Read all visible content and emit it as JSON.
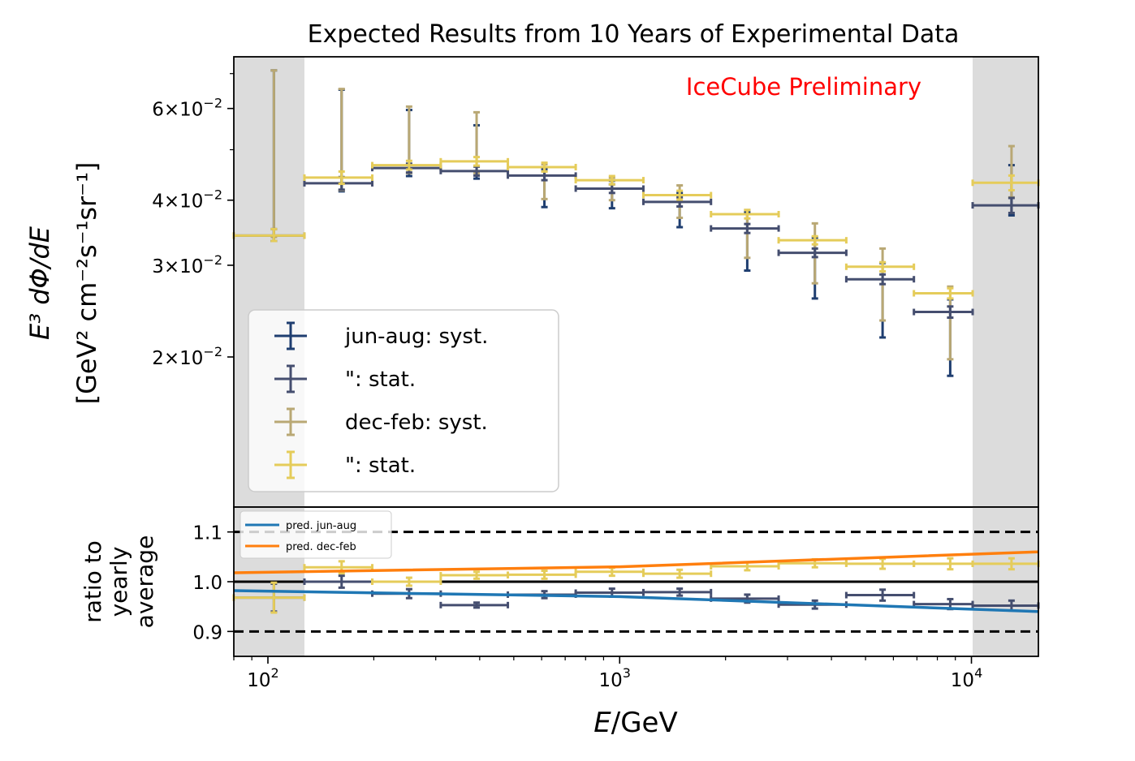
{
  "title": "Expected Results from 10 Years of Experimental Data",
  "watermark": "IceCube Preliminary",
  "colors": {
    "jun_syst": "#1f3e70",
    "jun_stat": "#454e6f",
    "dec_syst": "#b9a874",
    "dec_stat": "#e5cc5a",
    "pred_jun": "#1f77b4",
    "pred_dec": "#ff7f0e",
    "shade": "#dcdcdc",
    "watermark": "#ff0000"
  },
  "chart_data": [
    {
      "type": "scatter",
      "panel": "top",
      "xscale": "log",
      "yscale": "log",
      "xlim": [
        80,
        15500
      ],
      "ylim": [
        0.0103,
        0.0754
      ],
      "ylabel_line1": "E³ dΦ/dE",
      "ylabel_line2": "[GeV² cm⁻²s⁻¹sr⁻¹]",
      "yticks": [
        {
          "value": 0.02,
          "mant": "2",
          "exp": "−2"
        },
        {
          "value": 0.03,
          "mant": "3",
          "exp": "−2"
        },
        {
          "value": 0.04,
          "mant": "4",
          "exp": "−2"
        },
        {
          "value": 0.06,
          "mant": "6",
          "exp": "−2"
        }
      ],
      "shaded_x_ranges": [
        [
          80,
          127
        ],
        [
          10080,
          15500
        ]
      ],
      "legend": {
        "placement": "lower-left",
        "entries": [
          {
            "label": "jun-aug: syst.",
            "color_key": "jun_syst"
          },
          {
            "label": "\": stat.",
            "color_key": "jun_stat"
          },
          {
            "label": "dec-feb: syst.",
            "color_key": "dec_syst"
          },
          {
            "label": "\": stat.",
            "color_key": "dec_stat"
          }
        ]
      },
      "series": [
        {
          "name": "jun-aug",
          "points": [
            {
              "x": 104,
              "xlo": 80,
              "xhi": 127,
              "y": 0.0342,
              "stat": [
                0.0334,
                0.0352
              ],
              "syst": [
                0.0334,
                0.071
              ]
            },
            {
              "x": 162,
              "xlo": 127,
              "xhi": 198,
              "y": 0.0431,
              "stat": [
                0.0419,
                0.0443
              ],
              "syst": [
                0.0416,
                0.0652
              ]
            },
            {
              "x": 252,
              "xlo": 198,
              "xhi": 310,
              "y": 0.0461,
              "stat": [
                0.0452,
                0.047
              ],
              "syst": [
                0.0445,
                0.0596
              ]
            },
            {
              "x": 392,
              "xlo": 310,
              "xhi": 481,
              "y": 0.0455,
              "stat": [
                0.0446,
                0.0464
              ],
              "syst": [
                0.044,
                0.0557
              ]
            },
            {
              "x": 611,
              "xlo": 481,
              "xhi": 750,
              "y": 0.0446,
              "stat": [
                0.0437,
                0.0455
              ],
              "syst": [
                0.0388,
                0.046
              ]
            },
            {
              "x": 951,
              "xlo": 750,
              "xhi": 1168,
              "y": 0.0421,
              "stat": [
                0.0413,
                0.0429
              ],
              "syst": [
                0.0386,
                0.0436
              ]
            },
            {
              "x": 1481,
              "xlo": 1168,
              "xhi": 1818,
              "y": 0.0397,
              "stat": [
                0.0389,
                0.0405
              ],
              "syst": [
                0.0355,
                0.0413
              ]
            },
            {
              "x": 2305,
              "xlo": 1818,
              "xhi": 2831,
              "y": 0.0353,
              "stat": [
                0.0346,
                0.036
              ],
              "syst": [
                0.0293,
                0.0379
              ]
            },
            {
              "x": 3589,
              "xlo": 2831,
              "xhi": 4408,
              "y": 0.0317,
              "stat": [
                0.0311,
                0.0323
              ],
              "syst": [
                0.0259,
                0.0339
              ]
            },
            {
              "x": 5590,
              "xlo": 4408,
              "xhi": 6862,
              "y": 0.0282,
              "stat": [
                0.0276,
                0.0288
              ],
              "syst": [
                0.0218,
                0.0303
              ]
            },
            {
              "x": 8703,
              "xlo": 6862,
              "xhi": 10080,
              "y": 0.0244,
              "stat": [
                0.0238,
                0.025
              ],
              "syst": [
                0.0184,
                0.0258
              ]
            },
            {
              "x": 13000,
              "xlo": 10080,
              "xhi": 15500,
              "y": 0.0391,
              "stat": [
                0.0378,
                0.0404
              ],
              "syst": [
                0.0374,
                0.0467
              ]
            }
          ]
        },
        {
          "name": "dec-feb",
          "points": [
            {
              "x": 104,
              "xlo": 80,
              "xhi": 127,
              "y": 0.0342,
              "stat": [
                0.0334,
                0.0352
              ],
              "syst": [
                0.034,
                0.071
              ]
            },
            {
              "x": 162,
              "xlo": 127,
              "xhi": 198,
              "y": 0.0442,
              "stat": [
                0.043,
                0.0454
              ],
              "syst": [
                0.0418,
                0.0654
              ]
            },
            {
              "x": 252,
              "xlo": 198,
              "xhi": 310,
              "y": 0.0467,
              "stat": [
                0.0458,
                0.0476
              ],
              "syst": [
                0.0451,
                0.0605
              ]
            },
            {
              "x": 392,
              "xlo": 310,
              "xhi": 481,
              "y": 0.0475,
              "stat": [
                0.0466,
                0.0484
              ],
              "syst": [
                0.0451,
                0.059
              ]
            },
            {
              "x": 611,
              "xlo": 481,
              "xhi": 750,
              "y": 0.0463,
              "stat": [
                0.0454,
                0.0472
              ],
              "syst": [
                0.0402,
                0.0469
              ]
            },
            {
              "x": 951,
              "xlo": 750,
              "xhi": 1168,
              "y": 0.0437,
              "stat": [
                0.0429,
                0.0445
              ],
              "syst": [
                0.04,
                0.0442
              ]
            },
            {
              "x": 1481,
              "xlo": 1168,
              "xhi": 1818,
              "y": 0.0409,
              "stat": [
                0.0401,
                0.0417
              ],
              "syst": [
                0.037,
                0.0427
              ]
            },
            {
              "x": 2305,
              "xlo": 1818,
              "xhi": 2831,
              "y": 0.0376,
              "stat": [
                0.0369,
                0.0383
              ],
              "syst": [
                0.031,
                0.0383
              ]
            },
            {
              "x": 3589,
              "xlo": 2831,
              "xhi": 4408,
              "y": 0.0335,
              "stat": [
                0.0329,
                0.0341
              ],
              "syst": [
                0.0277,
                0.0361
              ]
            },
            {
              "x": 5590,
              "xlo": 4408,
              "xhi": 6862,
              "y": 0.0298,
              "stat": [
                0.0292,
                0.0304
              ],
              "syst": [
                0.0235,
                0.0323
              ]
            },
            {
              "x": 8703,
              "xlo": 6862,
              "xhi": 10080,
              "y": 0.0265,
              "stat": [
                0.0259,
                0.0271
              ],
              "syst": [
                0.0198,
                0.0273
              ]
            },
            {
              "x": 13000,
              "xlo": 10080,
              "xhi": 15500,
              "y": 0.0432,
              "stat": [
                0.0418,
                0.0446
              ],
              "syst": [
                0.0405,
                0.0508
              ]
            }
          ]
        }
      ]
    },
    {
      "type": "line",
      "panel": "bottom",
      "xscale": "log",
      "yscale": "linear",
      "xlim": [
        80,
        15500
      ],
      "ylim": [
        0.85,
        1.15
      ],
      "xlabel": "E/GeV",
      "ylabel_lines": [
        "ratio to",
        "yearly",
        "average"
      ],
      "yticks": [
        {
          "value": 0.9,
          "label": "0.9"
        },
        {
          "value": 1.0,
          "label": "1.0"
        },
        {
          "value": 1.1,
          "label": "1.1"
        }
      ],
      "xticks": [
        {
          "value": 100,
          "base": "10",
          "exp": "2"
        },
        {
          "value": 1000,
          "base": "10",
          "exp": "3"
        },
        {
          "value": 10000,
          "base": "10",
          "exp": "4"
        }
      ],
      "reference_lines": [
        {
          "y": 1.1,
          "style": "dashed"
        },
        {
          "y": 1.0,
          "style": "solid"
        },
        {
          "y": 0.9,
          "style": "dashed"
        }
      ],
      "shaded_x_ranges": [
        [
          80,
          127
        ],
        [
          10080,
          15500
        ]
      ],
      "legend": {
        "placement": "top-left",
        "entries": [
          {
            "label": "pred. jun-aug",
            "color_key": "pred_jun"
          },
          {
            "label": "pred. dec-feb",
            "color_key": "pred_dec"
          }
        ]
      },
      "lines": [
        {
          "name": "pred. jun-aug",
          "x": [
            80,
            1000,
            15500
          ],
          "y": [
            0.982,
            0.97,
            0.94
          ]
        },
        {
          "name": "pred. dec-feb",
          "x": [
            80,
            1000,
            15500
          ],
          "y": [
            1.018,
            1.03,
            1.06
          ]
        }
      ],
      "series": [
        {
          "name": "jun-aug",
          "points": [
            {
              "x": 104,
              "xlo": 80,
              "xhi": 127,
              "y": 0.968,
              "err": 0.028
            },
            {
              "x": 162,
              "xlo": 127,
              "xhi": 198,
              "y": 1.0,
              "err": 0.012
            },
            {
              "x": 252,
              "xlo": 198,
              "xhi": 310,
              "y": 0.976,
              "err": 0.009
            },
            {
              "x": 392,
              "xlo": 310,
              "xhi": 481,
              "y": 0.953,
              "err": 0.005
            },
            {
              "x": 611,
              "xlo": 481,
              "xhi": 750,
              "y": 0.974,
              "err": 0.007
            },
            {
              "x": 951,
              "xlo": 750,
              "xhi": 1168,
              "y": 0.978,
              "err": 0.008
            },
            {
              "x": 1481,
              "xlo": 1168,
              "xhi": 1818,
              "y": 0.979,
              "err": 0.007
            },
            {
              "x": 2305,
              "xlo": 1818,
              "xhi": 2831,
              "y": 0.966,
              "err": 0.008
            },
            {
              "x": 3589,
              "xlo": 2831,
              "xhi": 4408,
              "y": 0.954,
              "err": 0.008
            },
            {
              "x": 5590,
              "xlo": 4408,
              "xhi": 6862,
              "y": 0.973,
              "err": 0.011
            },
            {
              "x": 8703,
              "xlo": 6862,
              "xhi": 10080,
              "y": 0.955,
              "err": 0.01
            },
            {
              "x": 13000,
              "xlo": 10080,
              "xhi": 15500,
              "y": 0.952,
              "err": 0.01
            }
          ]
        },
        {
          "name": "dec-feb",
          "points": [
            {
              "x": 104,
              "xlo": 80,
              "xhi": 127,
              "y": 0.968,
              "err": 0.03
            },
            {
              "x": 162,
              "xlo": 127,
              "xhi": 198,
              "y": 1.029,
              "err": 0.012
            },
            {
              "x": 252,
              "xlo": 198,
              "xhi": 310,
              "y": 1.0,
              "err": 0.008
            },
            {
              "x": 392,
              "xlo": 310,
              "xhi": 481,
              "y": 1.013,
              "err": 0.007
            },
            {
              "x": 611,
              "xlo": 481,
              "xhi": 750,
              "y": 1.014,
              "err": 0.008
            },
            {
              "x": 951,
              "xlo": 750,
              "xhi": 1168,
              "y": 1.02,
              "err": 0.008
            },
            {
              "x": 1481,
              "xlo": 1168,
              "xhi": 1818,
              "y": 1.016,
              "err": 0.008
            },
            {
              "x": 2305,
              "xlo": 1818,
              "xhi": 2831,
              "y": 1.031,
              "err": 0.008
            },
            {
              "x": 3589,
              "xlo": 2831,
              "xhi": 4408,
              "y": 1.037,
              "err": 0.008
            },
            {
              "x": 5590,
              "xlo": 4408,
              "xhi": 6862,
              "y": 1.036,
              "err": 0.01
            },
            {
              "x": 8703,
              "xlo": 6862,
              "xhi": 10080,
              "y": 1.036,
              "err": 0.011
            },
            {
              "x": 13000,
              "xlo": 10080,
              "xhi": 15500,
              "y": 1.036,
              "err": 0.011
            }
          ]
        }
      ]
    }
  ]
}
